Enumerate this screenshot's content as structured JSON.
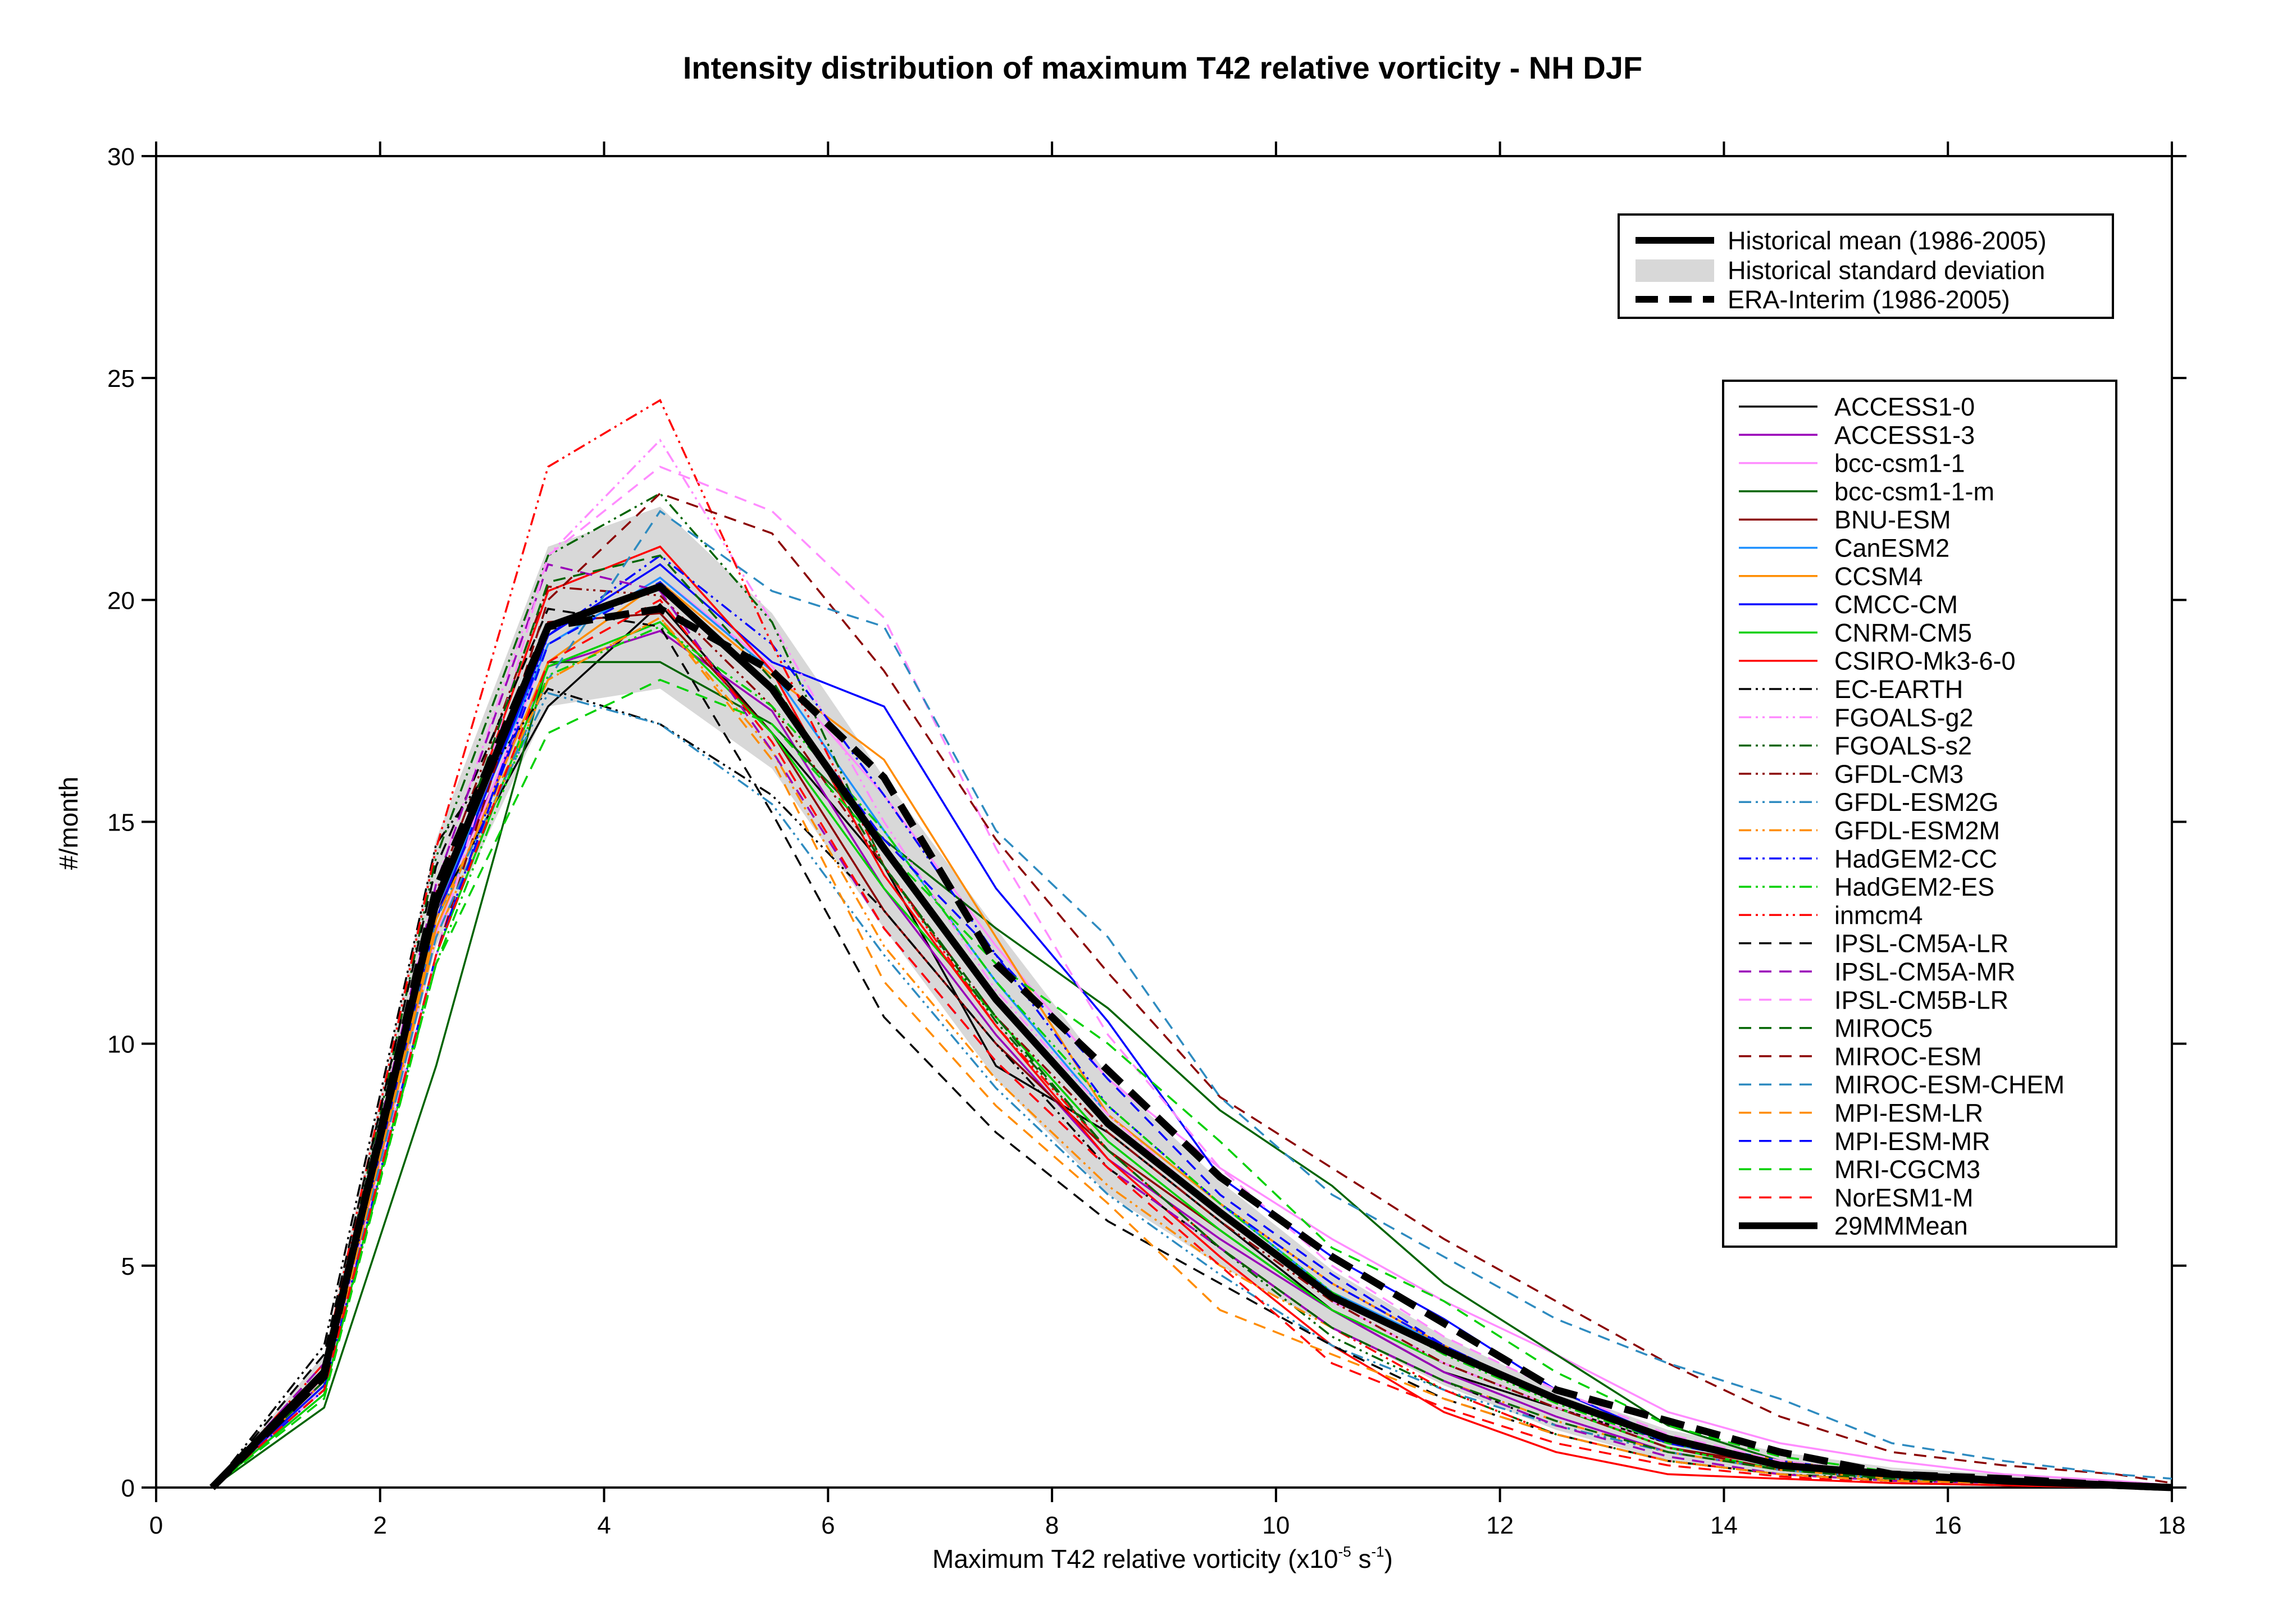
{
  "chart_data": {
    "type": "line",
    "title": "Intensity distribution of maximum T42 relative vorticity - NH DJF",
    "xlabel_main": "Maximum T42 relative vorticity (x10",
    "xlabel_exp1": "-5",
    "xlabel_mid": " s",
    "xlabel_exp2": "-1",
    "xlabel_end": ")",
    "ylabel": "#/month",
    "xlim": [
      0,
      18
    ],
    "ylim": [
      0,
      30
    ],
    "xticks": [
      "0",
      "2",
      "4",
      "6",
      "8",
      "10",
      "12",
      "14",
      "16",
      "18"
    ],
    "yticks": [
      "0",
      "5",
      "10",
      "15",
      "20",
      "25",
      "30"
    ],
    "x": [
      0.5,
      1.5,
      2.5,
      3.5,
      4.5,
      5.5,
      6.5,
      7.5,
      8.5,
      9.5,
      10.5,
      11.5,
      12.5,
      13.5,
      14.5,
      15.5,
      16.5,
      17.5,
      18
    ],
    "top_legend": [
      "Historical mean (1986-2005)",
      "Historical standard deviation",
      "ERA-Interim (1986-2005)"
    ],
    "std_band": {
      "lower": [
        0,
        2.2,
        12.2,
        17.6,
        18.0,
        16.2,
        12.6,
        9.2,
        6.6,
        5.0,
        3.6,
        2.3,
        1.3,
        0.6,
        0.3,
        0.15,
        0.1,
        0.05,
        0
      ],
      "upper": [
        0,
        3.0,
        14.6,
        21.2,
        22.1,
        19.7,
        16.0,
        12.6,
        9.3,
        6.9,
        4.9,
        3.4,
        2.2,
        1.3,
        0.8,
        0.45,
        0.3,
        0.15,
        0.05
      ]
    },
    "era_interim": [
      0,
      2.5,
      13.5,
      19.4,
      19.8,
      18.4,
      16.0,
      11.8,
      9.4,
      7.0,
      5.2,
      3.7,
      2.2,
      1.5,
      0.8,
      0.3,
      0.2,
      0.05,
      0
    ],
    "mm_mean": [
      0,
      2.6,
      13.2,
      19.4,
      20.3,
      18.0,
      14.4,
      11.0,
      8.2,
      6.2,
      4.3,
      3.1,
      2.0,
      1.1,
      0.5,
      0.3,
      0.15,
      0.05,
      0
    ],
    "series": [
      {
        "name": "ACCESS1-0",
        "color": "#000000",
        "dash": "solid",
        "values": [
          0,
          2.4,
          13.0,
          17.6,
          19.9,
          17.0,
          14.0,
          9.5,
          8.0,
          6.0,
          4.0,
          2.6,
          1.8,
          1.0,
          0.5,
          0.3,
          0.15,
          0.05,
          0
        ]
      },
      {
        "name": "ACCESS1-3",
        "color": "#9a00b8",
        "dash": "solid",
        "values": [
          0,
          2.4,
          13.0,
          18.5,
          19.3,
          17.5,
          13.5,
          10.2,
          7.4,
          5.6,
          4.0,
          2.6,
          1.6,
          0.8,
          0.4,
          0.2,
          0.1,
          0.05,
          0
        ]
      },
      {
        "name": "bcc-csm1-1",
        "color": "#ff8cff",
        "dash": "solid",
        "values": [
          0,
          2.2,
          12.5,
          19.0,
          20.5,
          18.5,
          15.6,
          12.2,
          9.2,
          7.2,
          5.6,
          4.2,
          3.0,
          1.7,
          1.0,
          0.6,
          0.3,
          0.15,
          0.05
        ]
      },
      {
        "name": "bcc-csm1-1-m",
        "color": "#006400",
        "dash": "solid",
        "values": [
          0,
          1.8,
          9.5,
          18.6,
          18.6,
          17.2,
          14.6,
          12.6,
          10.8,
          8.5,
          6.8,
          4.6,
          3.0,
          1.4,
          0.6,
          0.3,
          0.15,
          0.05,
          0
        ]
      },
      {
        "name": "BNU-ESM",
        "color": "#8b0000",
        "dash": "solid",
        "values": [
          0,
          2.6,
          13.0,
          19.5,
          19.7,
          17.0,
          13.0,
          10.0,
          7.6,
          5.8,
          4.0,
          2.8,
          1.8,
          0.9,
          0.5,
          0.3,
          0.2,
          0.1,
          0
        ]
      },
      {
        "name": "CanESM2",
        "color": "#1e90ff",
        "dash": "solid",
        "values": [
          0,
          2.5,
          13.0,
          19.0,
          20.5,
          18.4,
          14.8,
          11.4,
          8.4,
          6.4,
          4.4,
          3.2,
          2.0,
          1.0,
          0.5,
          0.3,
          0.15,
          0.05,
          0
        ]
      },
      {
        "name": "CCSM4",
        "color": "#ff8c00",
        "dash": "solid",
        "values": [
          0,
          2.3,
          12.6,
          18.6,
          20.4,
          18.3,
          16.4,
          12.4,
          8.4,
          6.4,
          4.6,
          3.2,
          2.0,
          1.1,
          0.6,
          0.3,
          0.15,
          0.05,
          0
        ]
      },
      {
        "name": "CMCC-CM",
        "color": "#0000ff",
        "dash": "solid",
        "values": [
          0,
          2.3,
          12.8,
          19.2,
          20.8,
          18.6,
          17.6,
          13.5,
          10.5,
          7.0,
          5.2,
          3.8,
          2.2,
          1.1,
          0.5,
          0.3,
          0.15,
          0.05,
          0
        ]
      },
      {
        "name": "CNRM-CM5",
        "color": "#00d000",
        "dash": "solid",
        "values": [
          0,
          2.1,
          12.0,
          18.5,
          19.5,
          17.0,
          13.5,
          10.6,
          7.8,
          5.8,
          4.0,
          2.8,
          1.8,
          0.9,
          0.4,
          0.2,
          0.1,
          0.05,
          0
        ]
      },
      {
        "name": "CSIRO-Mk3-6-0",
        "color": "#ff0000",
        "dash": "solid",
        "values": [
          0,
          2.5,
          13.0,
          20.2,
          21.2,
          18.4,
          13.8,
          10.4,
          7.4,
          5.2,
          3.2,
          1.7,
          0.8,
          0.3,
          0.2,
          0.1,
          0.05,
          0,
          0
        ]
      },
      {
        "name": "EC-EARTH",
        "color": "#000000",
        "dash": "dashdotdot",
        "values": [
          0,
          3.2,
          14.5,
          18.0,
          17.2,
          15.6,
          13.0,
          10.0,
          7.2,
          5.4,
          3.6,
          2.4,
          1.4,
          0.8,
          0.4,
          0.2,
          0.1,
          0.05,
          0
        ]
      },
      {
        "name": "FGOALS-g2",
        "color": "#ff8cff",
        "dash": "dashdotdot",
        "values": [
          0,
          2.6,
          13.6,
          21.0,
          23.6,
          19.5,
          15.0,
          11.2,
          8.4,
          6.2,
          4.2,
          2.8,
          1.8,
          1.0,
          0.5,
          0.3,
          0.15,
          0.05,
          0
        ]
      },
      {
        "name": "FGOALS-s2",
        "color": "#006400",
        "dash": "dashdotdot",
        "values": [
          0,
          2.6,
          14.2,
          21.0,
          22.4,
          19.5,
          14.0,
          10.5,
          7.6,
          5.4,
          3.4,
          2.2,
          1.2,
          0.6,
          0.3,
          0.2,
          0.1,
          0.05,
          0
        ]
      },
      {
        "name": "GFDL-CM3",
        "color": "#8b0000",
        "dash": "dashdotdot",
        "values": [
          0,
          2.6,
          13.4,
          20.3,
          20.1,
          17.6,
          14.0,
          10.6,
          8.0,
          6.0,
          4.2,
          2.8,
          1.8,
          0.9,
          0.4,
          0.2,
          0.1,
          0.05,
          0
        ]
      },
      {
        "name": "GFDL-ESM2G",
        "color": "#2e8bc0",
        "dash": "dashdotdot",
        "values": [
          0,
          2.6,
          12.8,
          17.9,
          17.2,
          15.4,
          12.0,
          9.0,
          6.6,
          4.8,
          3.2,
          2.2,
          1.4,
          0.8,
          0.4,
          0.2,
          0.1,
          0.05,
          0
        ]
      },
      {
        "name": "GFDL-ESM2M",
        "color": "#ff8c00",
        "dash": "dashdotdot",
        "values": [
          0,
          2.4,
          12.4,
          18.2,
          19.6,
          16.6,
          12.2,
          9.2,
          6.8,
          5.0,
          3.6,
          2.4,
          1.5,
          0.8,
          0.4,
          0.2,
          0.1,
          0.05,
          0
        ]
      },
      {
        "name": "HadGEM2-CC",
        "color": "#0000ff",
        "dash": "dashdotdot",
        "values": [
          0,
          2.2,
          12.0,
          19.2,
          21.0,
          19.0,
          15.6,
          12.0,
          8.6,
          6.4,
          4.6,
          3.2,
          2.0,
          1.1,
          0.6,
          0.3,
          0.15,
          0.05,
          0
        ]
      },
      {
        "name": "HadGEM2-ES",
        "color": "#00d000",
        "dash": "dashdotdot",
        "values": [
          0,
          2.1,
          11.8,
          18.3,
          19.4,
          17.6,
          14.8,
          11.4,
          8.6,
          6.4,
          4.4,
          3.0,
          1.9,
          1.0,
          0.5,
          0.3,
          0.15,
          0.05,
          0
        ]
      },
      {
        "name": "inmcm4",
        "color": "#ff0000",
        "dash": "dashdotdot",
        "values": [
          0,
          2.8,
          14.4,
          23.0,
          24.5,
          19.0,
          14.0,
          10.4,
          7.6,
          5.4,
          3.6,
          2.2,
          1.2,
          0.6,
          0.3,
          0.15,
          0.1,
          0.05,
          0
        ]
      },
      {
        "name": "IPSL-CM5A-LR",
        "color": "#000000",
        "dash": "dashed",
        "values": [
          0,
          3.0,
          14.0,
          19.8,
          19.4,
          15.2,
          10.6,
          8.0,
          6.0,
          4.6,
          3.2,
          2.0,
          1.2,
          0.6,
          0.3,
          0.15,
          0.1,
          0.05,
          0
        ]
      },
      {
        "name": "IPSL-CM5A-MR",
        "color": "#9a00b8",
        "dash": "dashed",
        "values": [
          0,
          2.8,
          13.6,
          20.8,
          20.2,
          16.6,
          12.6,
          9.6,
          7.2,
          5.4,
          3.6,
          2.4,
          1.4,
          0.7,
          0.3,
          0.15,
          0.1,
          0.05,
          0
        ]
      },
      {
        "name": "IPSL-CM5B-LR",
        "color": "#ff8cff",
        "dash": "dashed",
        "values": [
          0,
          2.4,
          12.0,
          21.0,
          23.0,
          22.0,
          19.6,
          14.4,
          10.2,
          7.2,
          5.0,
          3.4,
          2.2,
          1.2,
          0.6,
          0.3,
          0.15,
          0.05,
          0
        ]
      },
      {
        "name": "MIROC5",
        "color": "#006400",
        "dash": "dashed",
        "values": [
          0,
          2.4,
          13.0,
          20.4,
          21.0,
          18.2,
          14.0,
          10.6,
          7.6,
          5.4,
          3.6,
          2.4,
          1.5,
          0.8,
          0.4,
          0.2,
          0.1,
          0.05,
          0
        ]
      },
      {
        "name": "MIROC-ESM",
        "color": "#8b0000",
        "dash": "dashed",
        "values": [
          0,
          2.2,
          12.0,
          20.0,
          22.4,
          21.5,
          18.4,
          14.6,
          11.6,
          8.8,
          7.2,
          5.6,
          4.2,
          2.8,
          1.6,
          0.8,
          0.5,
          0.3,
          0.1
        ]
      },
      {
        "name": "MIROC-ESM-CHEM",
        "color": "#2e8bc0",
        "dash": "dashed",
        "values": [
          0,
          2.2,
          12.4,
          18.2,
          22.0,
          20.2,
          19.4,
          14.8,
          12.4,
          8.8,
          6.6,
          5.2,
          3.8,
          2.8,
          2.0,
          1.0,
          0.6,
          0.3,
          0.2
        ]
      },
      {
        "name": "MPI-ESM-LR",
        "color": "#ff8c00",
        "dash": "dashed",
        "values": [
          0,
          2.2,
          12.8,
          18.2,
          19.6,
          16.4,
          11.4,
          8.6,
          6.4,
          4.0,
          3.0,
          2.0,
          1.2,
          0.6,
          0.3,
          0.15,
          0.1,
          0.05,
          0
        ]
      },
      {
        "name": "MPI-ESM-MR",
        "color": "#0000ff",
        "dash": "dashed",
        "values": [
          0,
          2.2,
          12.0,
          19.0,
          20.4,
          18.0,
          14.6,
          12.0,
          9.2,
          6.6,
          4.8,
          3.2,
          2.0,
          1.0,
          0.5,
          0.25,
          0.1,
          0.05,
          0
        ]
      },
      {
        "name": "MRI-CGCM3",
        "color": "#00d000",
        "dash": "dashed",
        "values": [
          0,
          2.0,
          11.8,
          17.0,
          18.2,
          17.2,
          14.4,
          11.8,
          10.0,
          7.8,
          5.4,
          4.2,
          2.6,
          1.4,
          0.7,
          0.35,
          0.15,
          0.05,
          0
        ]
      },
      {
        "name": "NorESM1-M",
        "color": "#ff0000",
        "dash": "dashed",
        "values": [
          0,
          2.2,
          12.0,
          18.6,
          20.0,
          16.8,
          12.6,
          9.6,
          7.2,
          5.0,
          2.8,
          1.8,
          1.0,
          0.5,
          0.25,
          0.1,
          0.05,
          0,
          0
        ]
      }
    ],
    "legend_last": "29MMMean"
  }
}
